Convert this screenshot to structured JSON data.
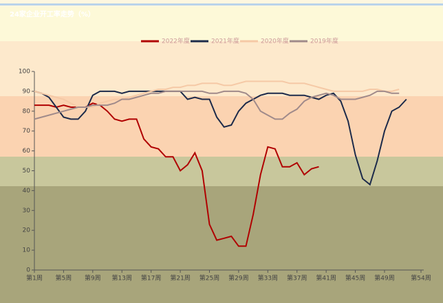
{
  "chart_data": {
    "type": "line",
    "title": "24家企业开工率走势（%）",
    "x": [
      1,
      2,
      3,
      4,
      5,
      6,
      7,
      8,
      9,
      10,
      11,
      12,
      13,
      14,
      15,
      16,
      17,
      18,
      19,
      20,
      21,
      22,
      23,
      24,
      25,
      26,
      27,
      28,
      29,
      30,
      31,
      32,
      33,
      34,
      35,
      36,
      37,
      38,
      39,
      40,
      41,
      42,
      43,
      44,
      45,
      46,
      47,
      48,
      49,
      50,
      51,
      52
    ],
    "series": [
      {
        "name": "2022年度",
        "color": "#b00000",
        "values": [
          83,
          83,
          83,
          82,
          83,
          82,
          82,
          82,
          84,
          83,
          80,
          76,
          75,
          76,
          76,
          66,
          62,
          61,
          57,
          57,
          50,
          53,
          59,
          50,
          23,
          15,
          16,
          17,
          12,
          12,
          28,
          48,
          62,
          61,
          52,
          52,
          54,
          48,
          51,
          52,
          null,
          null,
          null,
          null,
          null,
          null,
          null,
          null,
          null,
          null,
          null,
          null
        ]
      },
      {
        "name": "2021年度",
        "color": "#1c2a4a",
        "values": [
          90,
          89,
          87,
          82,
          77,
          76,
          76,
          80,
          88,
          90,
          90,
          90,
          89,
          90,
          90,
          90,
          90,
          90,
          90,
          90,
          90,
          86,
          87,
          86,
          86,
          77,
          72,
          73,
          80,
          84,
          86,
          88,
          89,
          89,
          89,
          88,
          88,
          88,
          87,
          86,
          88,
          89,
          85,
          75,
          58,
          46,
          43,
          55,
          70,
          80,
          82,
          86
        ]
      },
      {
        "name": "2020年度",
        "color": "#f5c9a6",
        "values": [
          90,
          89,
          88,
          87,
          86,
          84,
          82,
          82,
          82,
          84,
          85,
          86,
          86,
          87,
          88,
          89,
          90,
          91,
          91,
          92,
          92,
          93,
          93,
          94,
          94,
          94,
          93,
          93,
          94,
          95,
          95,
          95,
          95,
          95,
          95,
          94,
          94,
          94,
          93,
          92,
          91,
          90,
          90,
          90,
          90,
          90,
          91,
          91,
          90,
          90,
          91,
          null
        ]
      },
      {
        "name": "2019年度",
        "color": "#a08a8a",
        "values": [
          76,
          77,
          78,
          79,
          80,
          81,
          82,
          82,
          83,
          83,
          83,
          84,
          86,
          86,
          87,
          88,
          89,
          89,
          90,
          90,
          90,
          90,
          90,
          90,
          89,
          89,
          90,
          90,
          90,
          89,
          86,
          80,
          78,
          76,
          76,
          79,
          81,
          85,
          87,
          88,
          89,
          88,
          86,
          86,
          86,
          87,
          88,
          90,
          90,
          89,
          89,
          null
        ]
      }
    ],
    "xlim": [
      1,
      54
    ],
    "xticks": [
      {
        "value": 1,
        "label": "第1周"
      },
      {
        "value": 5,
        "label": "第5周"
      },
      {
        "value": 9,
        "label": "第9周"
      },
      {
        "value": 13,
        "label": "第13周"
      },
      {
        "value": 17,
        "label": "第17周"
      },
      {
        "value": 21,
        "label": "第21周"
      },
      {
        "value": 25,
        "label": "第25周"
      },
      {
        "value": 29,
        "label": "第29周"
      },
      {
        "value": 33,
        "label": "第33周"
      },
      {
        "value": 37,
        "label": "第37周"
      },
      {
        "value": 41,
        "label": "第41周"
      },
      {
        "value": 45,
        "label": "第45周"
      },
      {
        "value": 49,
        "label": "第49周"
      },
      {
        "value": 54,
        "label": "第54周"
      }
    ],
    "ylim": [
      0,
      100
    ],
    "yticks": [
      0,
      10,
      20,
      30,
      40,
      50,
      60,
      70,
      80,
      90,
      100
    ]
  }
}
